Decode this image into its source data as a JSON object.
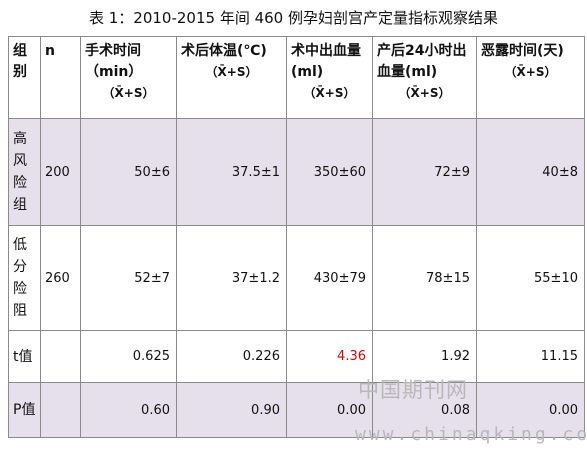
{
  "caption": "表 1：2010-2015 年间 460 例孕妇剖宫产定量指标观察结果",
  "headers": {
    "group": "组别",
    "n": "n",
    "surgery_time": "手术时间（min）",
    "surgery_time_sub": "（X̄+S）",
    "postop_temp": "术后体温(℃)",
    "postop_temp_sub": "（X̄+S）",
    "intraop_blood": "术中出血量(ml)",
    "intraop_blood_sub": "（X̄+S）",
    "postpartum_blood": "产后24小时出血量(ml)",
    "postpartum_blood_sub": "（X̄+S）",
    "lochia_time": "恶露时间(天)",
    "lochia_time_sub": "（X̄+S）"
  },
  "rows": [
    {
      "label": "高风险组",
      "n": "200",
      "surgery_time": "50±6",
      "postop_temp": "37.5±1",
      "intraop_blood": "350±60",
      "postpartum_blood": "72±9",
      "lochia_time": "40±8"
    },
    {
      "label": "低分险阻",
      "n": "260",
      "surgery_time": "52±7",
      "postop_temp": "37±1.2",
      "intraop_blood": "430±79",
      "postpartum_blood": "78±15",
      "lochia_time": "55±10"
    },
    {
      "label": "t值",
      "n": "",
      "surgery_time": "0.625",
      "postop_temp": "0.226",
      "intraop_blood": "4.36",
      "postpartum_blood": "1.92",
      "lochia_time": "11.15"
    },
    {
      "label": "P值",
      "n": "",
      "surgery_time": "0.60",
      "postop_temp": "0.90",
      "intraop_blood": "0.00",
      "postpartum_blood": "0.08",
      "lochia_time": "0.00"
    }
  ],
  "highlight_color": "#e00000",
  "row_shade_color": "#e6e0ec",
  "watermark": {
    "cn": "中国期刊网",
    "url": "www.chinaqking.com"
  }
}
